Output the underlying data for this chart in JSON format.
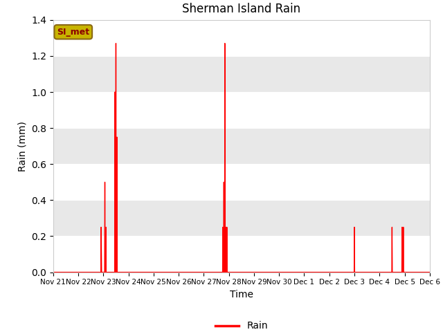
{
  "title": "Sherman Island Rain",
  "xlabel": "Time",
  "ylabel": "Rain (mm)",
  "ylim": [
    0,
    1.4
  ],
  "yticks": [
    0.0,
    0.2,
    0.4,
    0.6,
    0.8,
    1.0,
    1.2,
    1.4
  ],
  "legend_label": "Rain",
  "line_color": "#ff0000",
  "legend_box_color": "#c8b400",
  "legend_box_text": "SI_met",
  "plot_bg_color": "#e8e8e8",
  "x_tick_labels": [
    "Nov 21",
    "Nov 22",
    "Nov 23",
    "Nov 24",
    "Nov 25",
    "Nov 26",
    "Nov 27",
    "Nov 28",
    "Nov 29",
    "Nov 30",
    "Dec 1",
    "Dec 2",
    "Dec 3",
    "Dec 4",
    "Dec 5",
    "Dec 6"
  ],
  "data_points": [
    [
      0.0,
      0.0
    ],
    [
      1.9,
      0.0
    ],
    [
      1.91,
      0.25
    ],
    [
      1.93,
      0.0
    ],
    [
      2.05,
      0.0
    ],
    [
      2.06,
      0.5
    ],
    [
      2.07,
      0.0
    ],
    [
      2.09,
      0.0
    ],
    [
      2.1,
      0.25
    ],
    [
      2.11,
      0.0
    ],
    [
      2.45,
      0.0
    ],
    [
      2.46,
      1.0
    ],
    [
      2.47,
      0.0
    ],
    [
      2.49,
      0.0
    ],
    [
      2.5,
      1.27
    ],
    [
      2.51,
      0.0
    ],
    [
      2.53,
      0.0
    ],
    [
      2.54,
      0.75
    ],
    [
      2.55,
      0.0
    ],
    [
      5.9,
      0.0
    ],
    [
      6.75,
      0.0
    ],
    [
      6.76,
      0.25
    ],
    [
      6.77,
      0.0
    ],
    [
      6.79,
      0.0
    ],
    [
      6.8,
      0.5
    ],
    [
      6.81,
      0.0
    ],
    [
      6.83,
      0.0
    ],
    [
      6.84,
      1.27
    ],
    [
      6.85,
      0.0
    ],
    [
      6.87,
      0.0
    ],
    [
      6.88,
      0.25
    ],
    [
      6.89,
      0.0
    ],
    [
      6.91,
      0.0
    ],
    [
      6.92,
      0.25
    ],
    [
      6.93,
      0.0
    ],
    [
      11.9,
      0.0
    ],
    [
      11.99,
      0.0
    ],
    [
      12.0,
      0.25
    ],
    [
      12.01,
      0.0
    ],
    [
      12.9,
      0.0
    ],
    [
      13.49,
      0.0
    ],
    [
      13.5,
      0.25
    ],
    [
      13.51,
      0.0
    ],
    [
      13.89,
      0.0
    ],
    [
      13.9,
      0.25
    ],
    [
      13.91,
      0.0
    ],
    [
      13.94,
      0.0
    ],
    [
      13.95,
      0.25
    ],
    [
      13.96,
      0.0
    ],
    [
      15.0,
      0.0
    ]
  ]
}
